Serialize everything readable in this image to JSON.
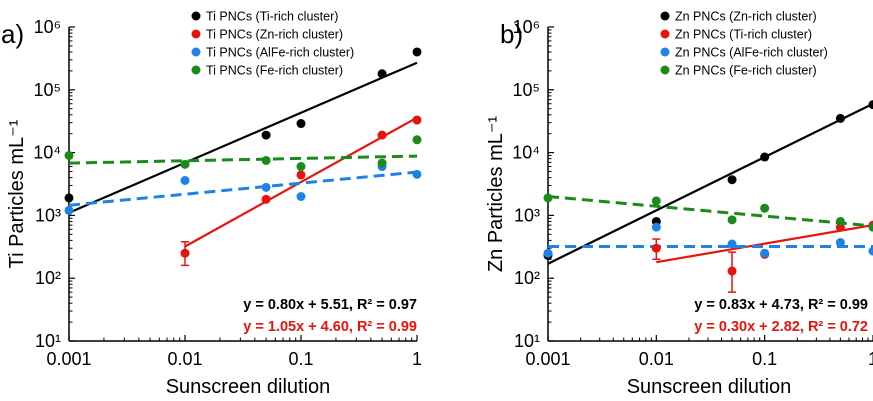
{
  "chart_data": [
    {
      "type": "scatter",
      "panel_label": "a)",
      "xlabel": "Sunscreen dilution",
      "ylabel": "Ti Particles mL⁻¹",
      "x_scale": "log",
      "y_scale": "log",
      "xlim": [
        0.001,
        1
      ],
      "ylim": [
        10,
        1000000
      ],
      "x_ticks": [
        {
          "value": 0.001,
          "label": "0.001"
        },
        {
          "value": 0.01,
          "label": "0.01"
        },
        {
          "value": 0.1,
          "label": "0.1"
        },
        {
          "value": 1,
          "label": "1"
        }
      ],
      "y_ticks": [
        {
          "value": 10,
          "label": "10¹"
        },
        {
          "value": 100,
          "label": "10²"
        },
        {
          "value": 1000,
          "label": "10³"
        },
        {
          "value": 10000,
          "label": "10⁴"
        },
        {
          "value": 100000,
          "label": "10⁵"
        },
        {
          "value": 1000000,
          "label": "10⁶"
        }
      ],
      "legend_position": "top-right",
      "series": [
        {
          "name": "Ti PNCs (Ti-rich cluster)",
          "color": "#000000",
          "points": [
            {
              "x": 0.001,
              "y": 1900
            },
            {
              "x": 0.05,
              "y": 19000
            },
            {
              "x": 0.1,
              "y": 29000
            },
            {
              "x": 0.5,
              "y": 180000
            },
            {
              "x": 1,
              "y": 400000
            }
          ],
          "fit": {
            "type": "solid",
            "x": [
              0.001,
              1
            ],
            "y": [
              1100,
              270000
            ]
          }
        },
        {
          "name": "Ti PNCs (Zn-rich cluster)",
          "color": "#e8140c",
          "points": [
            {
              "x": 0.01,
              "y": 250,
              "err": [
                160,
                380
              ]
            },
            {
              "x": 0.05,
              "y": 1800
            },
            {
              "x": 0.1,
              "y": 4400
            },
            {
              "x": 0.5,
              "y": 19000
            },
            {
              "x": 1,
              "y": 33000
            }
          ],
          "fit": {
            "type": "solid",
            "x": [
              0.01,
              1
            ],
            "y": [
              320,
              36000
            ]
          }
        },
        {
          "name": "Ti PNCs (AlFe-rich cluster)",
          "color": "#1f82e6",
          "points": [
            {
              "x": 0.001,
              "y": 1200
            },
            {
              "x": 0.01,
              "y": 3600
            },
            {
              "x": 0.05,
              "y": 2800
            },
            {
              "x": 0.1,
              "y": 2000
            },
            {
              "x": 0.5,
              "y": 6000
            },
            {
              "x": 1,
              "y": 4500
            }
          ],
          "fit": {
            "type": "dashed",
            "x": [
              0.001,
              1
            ],
            "y": [
              1450,
              4900
            ]
          }
        },
        {
          "name": "Ti PNCs (Fe-rich cluster)",
          "color": "#1a8a1a",
          "points": [
            {
              "x": 0.001,
              "y": 9000
            },
            {
              "x": 0.01,
              "y": 6500
            },
            {
              "x": 0.05,
              "y": 7500
            },
            {
              "x": 0.1,
              "y": 6000
            },
            {
              "x": 0.5,
              "y": 6800
            },
            {
              "x": 1,
              "y": 16000
            }
          ],
          "fit": {
            "type": "dashed",
            "x": [
              0.001,
              1
            ],
            "y": [
              6800,
              8800
            ]
          }
        }
      ],
      "annotations": [
        {
          "text": "y = 0.80x + 5.51, R² = 0.97",
          "color": "#000000"
        },
        {
          "text": "y = 1.05x + 4.60, R² = 0.99",
          "color": "#e8140c"
        }
      ]
    },
    {
      "type": "scatter",
      "panel_label": "b)",
      "xlabel": "Sunscreen dilution",
      "ylabel": "Zn Particles mL⁻¹",
      "x_scale": "log",
      "y_scale": "log",
      "xlim": [
        0.001,
        1
      ],
      "ylim": [
        10,
        1000000
      ],
      "x_ticks": [
        {
          "value": 0.001,
          "label": "0.001"
        },
        {
          "value": 0.01,
          "label": "0.01"
        },
        {
          "value": 0.1,
          "label": "0.1"
        },
        {
          "value": 1,
          "label": "1"
        }
      ],
      "y_ticks": [
        {
          "value": 10,
          "label": "10¹"
        },
        {
          "value": 100,
          "label": "10²"
        },
        {
          "value": 1000,
          "label": "10³"
        },
        {
          "value": 10000,
          "label": "10⁴"
        },
        {
          "value": 100000,
          "label": "10⁵"
        },
        {
          "value": 1000000,
          "label": "10⁶"
        }
      ],
      "legend_position": "top-right",
      "series": [
        {
          "name": "Zn PNCs (Zn-rich cluster)",
          "color": "#000000",
          "points": [
            {
              "x": 0.001,
              "y": 230
            },
            {
              "x": 0.01,
              "y": 800
            },
            {
              "x": 0.05,
              "y": 3700
            },
            {
              "x": 0.1,
              "y": 8500
            },
            {
              "x": 0.5,
              "y": 35000
            },
            {
              "x": 1,
              "y": 58000
            }
          ],
          "fit": {
            "type": "solid",
            "x": [
              0.001,
              1
            ],
            "y": [
              170,
              60000
            ]
          }
        },
        {
          "name": "Zn PNCs (Ti-rich cluster)",
          "color": "#e8140c",
          "points": [
            {
              "x": 0.01,
              "y": 300,
              "err": [
                200,
                420
              ]
            },
            {
              "x": 0.05,
              "y": 130,
              "err": [
                60,
                260
              ]
            },
            {
              "x": 0.1,
              "y": 240
            },
            {
              "x": 0.5,
              "y": 650
            },
            {
              "x": 1,
              "y": 700
            }
          ],
          "fit": {
            "type": "solid",
            "x": [
              0.01,
              1
            ],
            "y": [
              180,
              700
            ]
          }
        },
        {
          "name": "Zn PNCs (AlFe-rich cluster)",
          "color": "#1f82e6",
          "points": [
            {
              "x": 0.001,
              "y": 250
            },
            {
              "x": 0.01,
              "y": 650
            },
            {
              "x": 0.05,
              "y": 350
            },
            {
              "x": 0.1,
              "y": 250
            },
            {
              "x": 0.5,
              "y": 370
            },
            {
              "x": 1,
              "y": 270
            }
          ],
          "fit": {
            "type": "dashed",
            "x": [
              0.001,
              1
            ],
            "y": [
              320,
              320
            ]
          }
        },
        {
          "name": "Zn PNCs (Fe-rich cluster)",
          "color": "#1a8a1a",
          "points": [
            {
              "x": 0.001,
              "y": 1900
            },
            {
              "x": 0.01,
              "y": 1700
            },
            {
              "x": 0.05,
              "y": 850
            },
            {
              "x": 0.1,
              "y": 1300
            },
            {
              "x": 0.5,
              "y": 800
            },
            {
              "x": 1,
              "y": 650
            }
          ],
          "fit": {
            "type": "dashed",
            "x": [
              0.001,
              1
            ],
            "y": [
              2000,
              680
            ]
          }
        }
      ],
      "annotations": [
        {
          "text": "y = 0.83x + 4.73, R² = 0.99",
          "color": "#000000"
        },
        {
          "text": "y = 0.30x + 2.82, R² = 0.72",
          "color": "#e8140c"
        }
      ]
    }
  ]
}
